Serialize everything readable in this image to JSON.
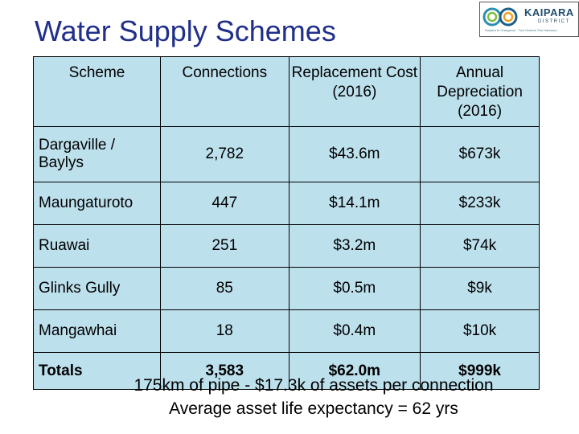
{
  "slide": {
    "title": "Water Supply Schemes",
    "logo": {
      "brand": "KAIPARA",
      "sub": "DISTRICT",
      "tagline": "Kaipara te Oranganui · Two Oceans Two Harbours"
    },
    "columns": [
      "Scheme",
      "Connections",
      "Replacement Cost (2016)",
      "Annual Depreciation (2016)"
    ],
    "rows": [
      {
        "scheme": "Dargaville / Baylys",
        "connections": "2,782",
        "replacement": "$43.6m",
        "depreciation": "$673k"
      },
      {
        "scheme": "Maungaturoto",
        "connections": "447",
        "replacement": "$14.1m",
        "depreciation": "$233k"
      },
      {
        "scheme": "Ruawai",
        "connections": "251",
        "replacement": "$3.2m",
        "depreciation": "$74k"
      },
      {
        "scheme": "Glinks Gully",
        "connections": "85",
        "replacement": "$0.5m",
        "depreciation": "$9k"
      },
      {
        "scheme": "Mangawhai",
        "connections": "18",
        "replacement": "$0.4m",
        "depreciation": "$10k"
      }
    ],
    "totals": {
      "label": "Totals",
      "connections": "3,583",
      "replacement": "$62.0m",
      "depreciation": "$999k"
    },
    "footer": [
      "175km of pipe - $17.3k of assets per connection",
      "Average asset life expectancy = 62 yrs"
    ]
  }
}
